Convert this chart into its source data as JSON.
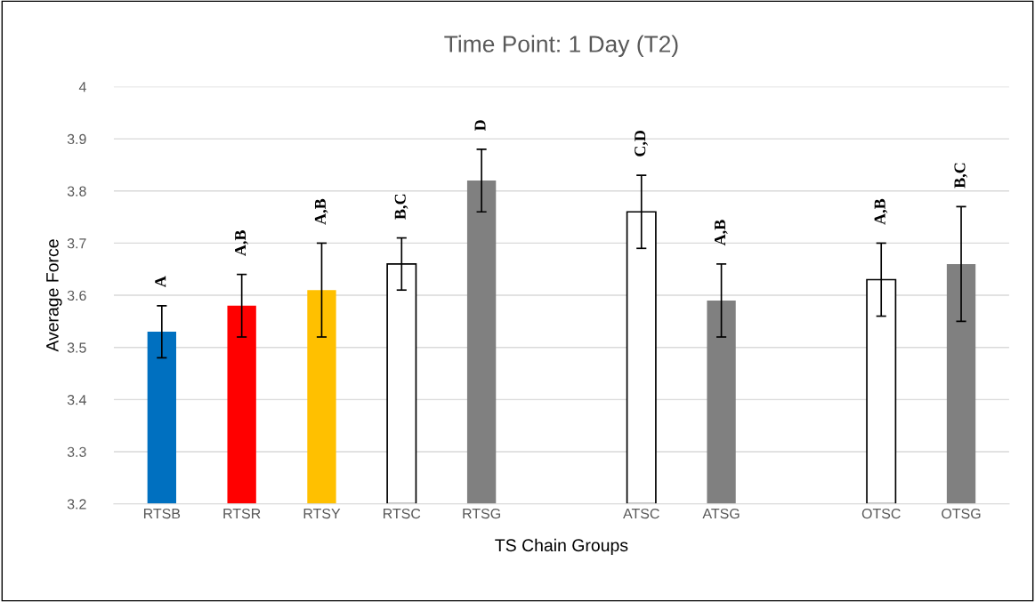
{
  "chart_data": {
    "type": "bar",
    "title": "Time Point: 1 Day (T2)",
    "xlabel": "TS Chain Groups",
    "ylabel": "Average Force",
    "categories": [
      "RTSB",
      "RTSR",
      "RTSY",
      "RTSC",
      "RTSG",
      null,
      "ATSC",
      "ATSG",
      null,
      "OTSC",
      "OTSG"
    ],
    "values": [
      3.53,
      3.58,
      3.61,
      3.66,
      3.82,
      null,
      3.76,
      3.59,
      null,
      3.63,
      3.66
    ],
    "colors": [
      "#0070c0",
      "#ff0000",
      "#ffc000",
      "#ffffff",
      "#808080",
      "#ffffff",
      "#ffffff",
      "#808080",
      "#ffffff",
      "#ffffff",
      "#808080"
    ],
    "errors": [
      0.05,
      0.06,
      0.09,
      0.05,
      0.06,
      null,
      0.07,
      0.07,
      null,
      0.07,
      0.11
    ],
    "ylim": [
      3.2,
      4
    ],
    "yticks": [
      3.2,
      3.3,
      3.4,
      3.5,
      3.6,
      3.7,
      3.8,
      3.9,
      4
    ],
    "grid": "y",
    "annotations": [
      "A",
      "A,B",
      "A,B",
      "B,C",
      "D",
      "C,D",
      "A,B",
      "A,B",
      "B,C"
    ]
  }
}
